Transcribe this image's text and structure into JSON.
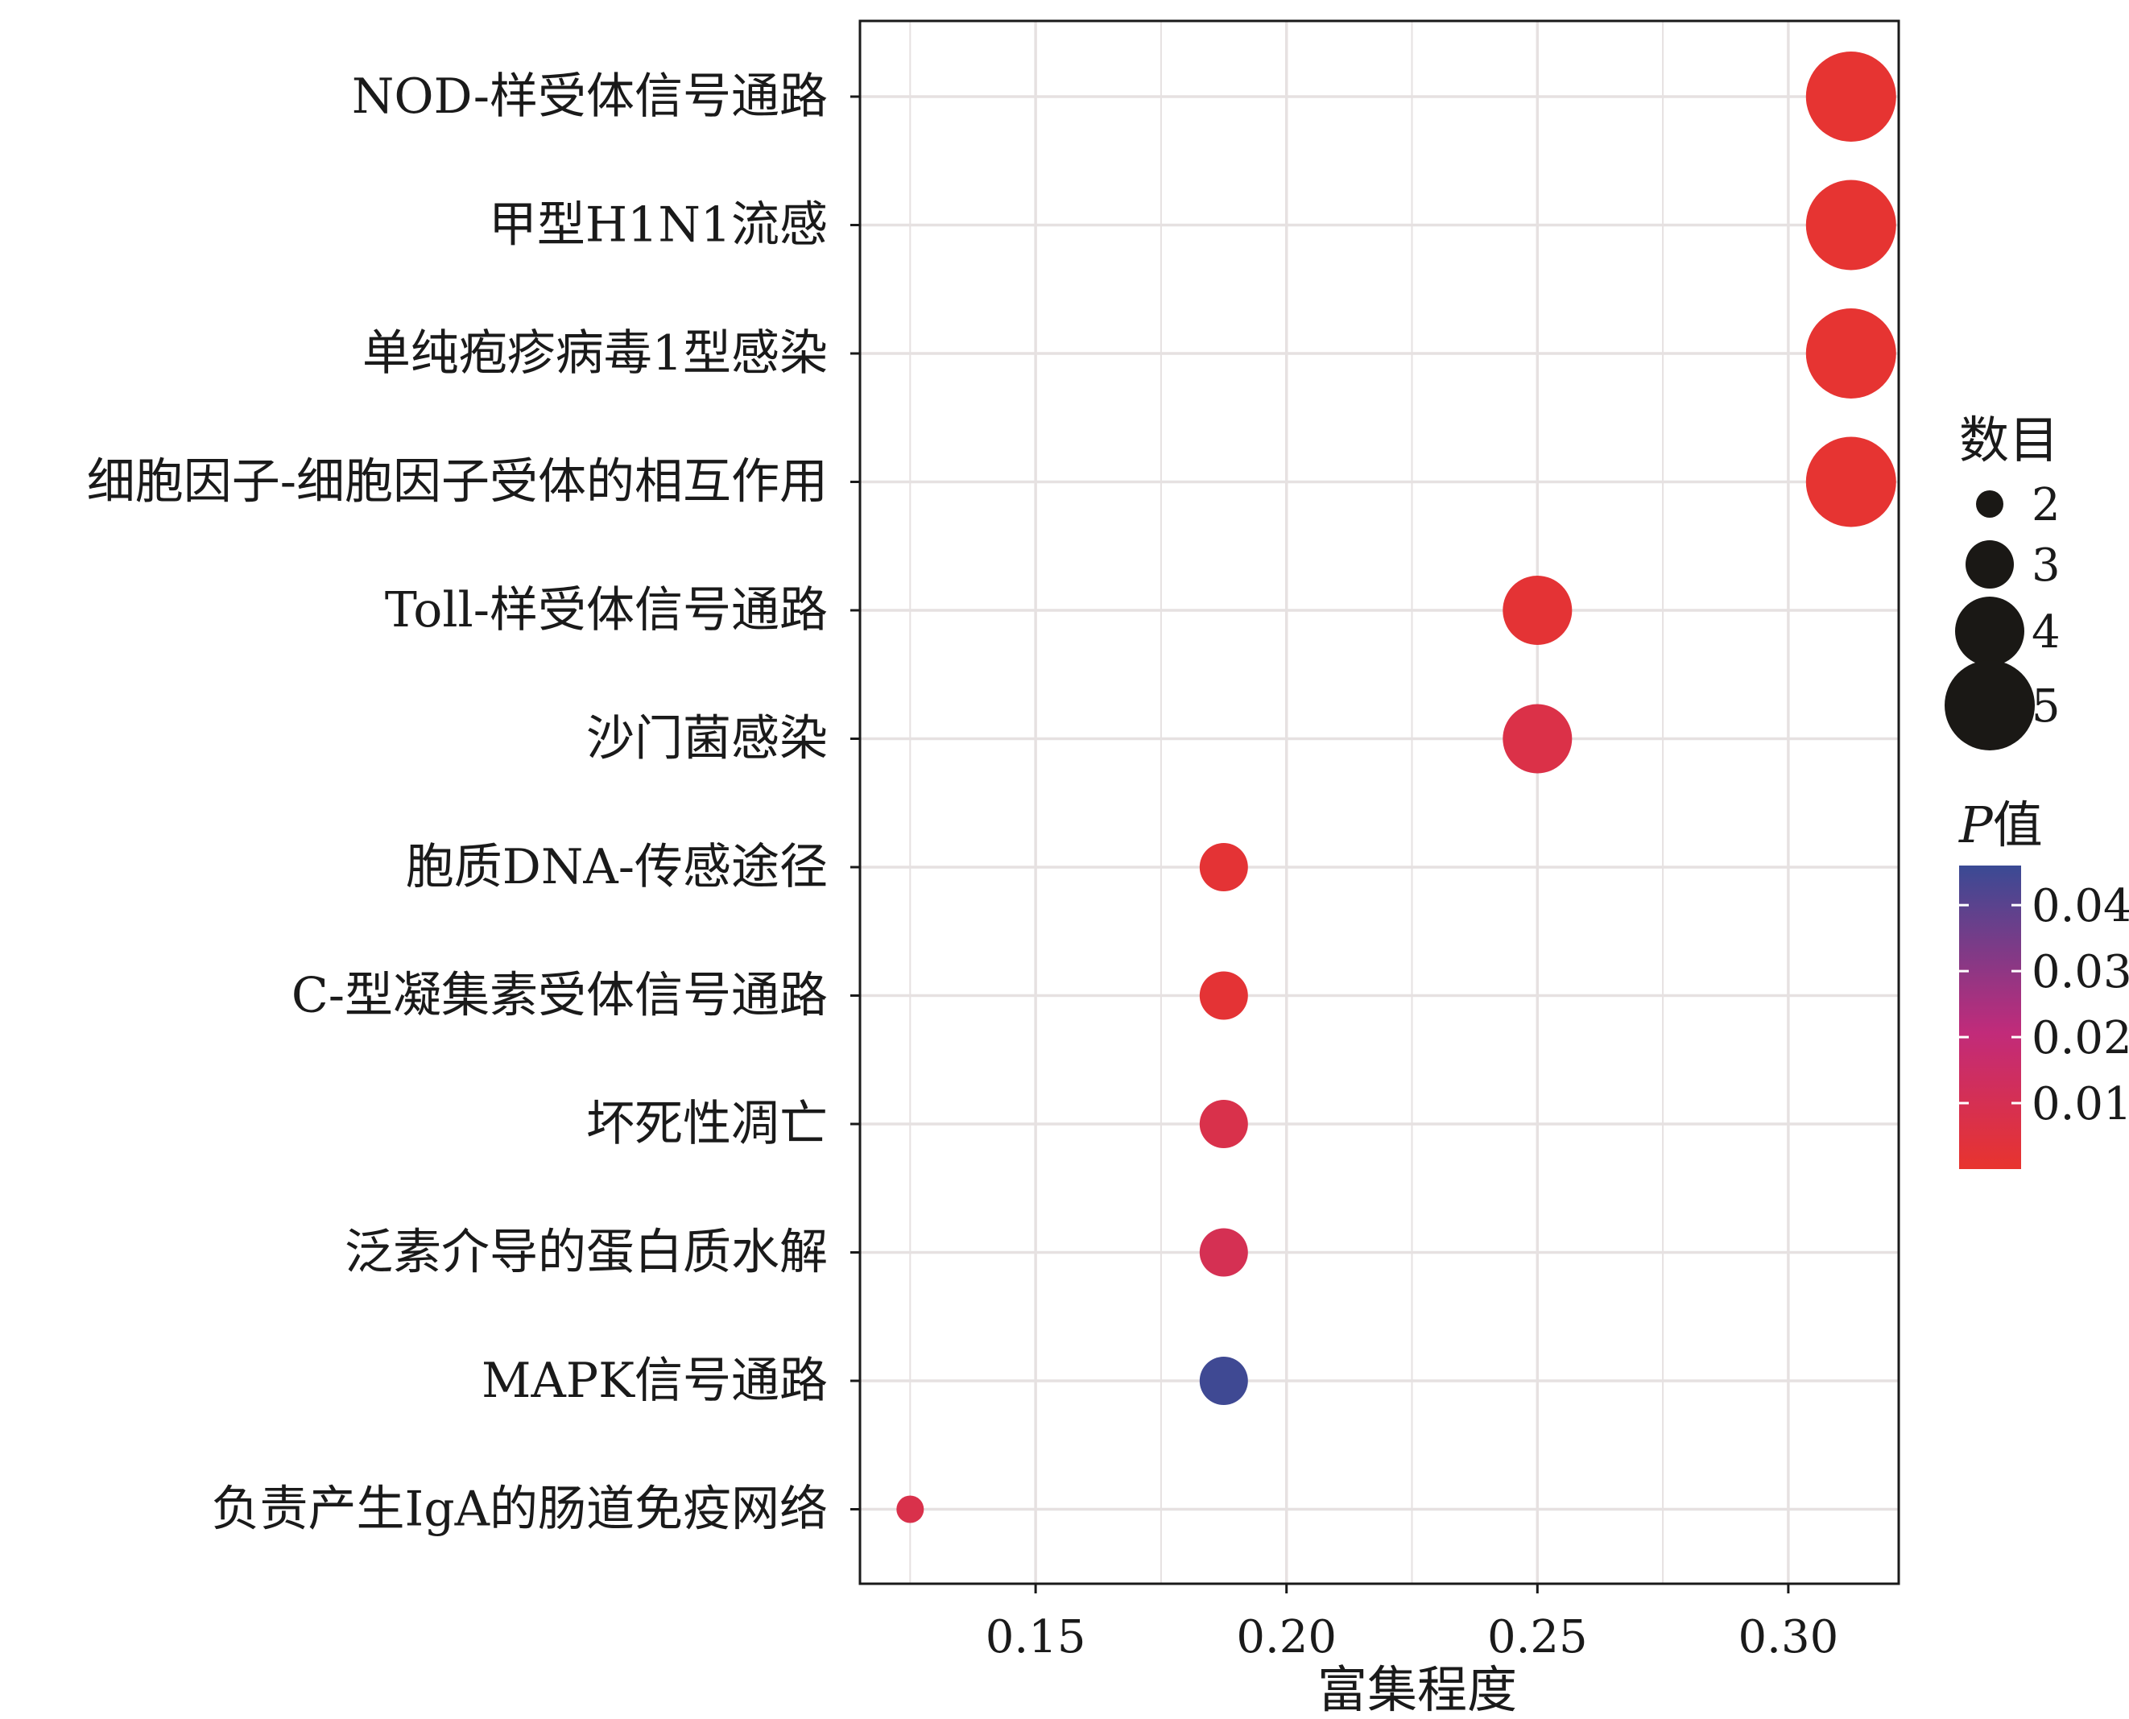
{
  "chart_data": {
    "type": "scatter",
    "xlabel": "富集程度",
    "ylabel": "",
    "xlim": [
      0.115,
      0.322
    ],
    "xticks": [
      0.15,
      0.2,
      0.25,
      0.3
    ],
    "xtick_labels": [
      "0.15",
      "0.20",
      "0.25",
      "0.30"
    ],
    "grid": true,
    "categories": [
      "NOD-样受体信号通路",
      "甲型H1N1流感",
      "单纯疱疹病毒1型感染",
      "细胞因子-细胞因子受体的相互作用",
      "Toll-样受体信号通路",
      "沙门菌感染",
      "胞质DNA-传感途径",
      "C-型凝集素受体信号通路",
      "坏死性凋亡",
      "泛素介导的蛋白质水解",
      "MAPK信号通路",
      "负责产生IgA的肠道免疫网络"
    ],
    "points": [
      {
        "category": "NOD-样受体信号通路",
        "x": 0.3125,
        "count": 5,
        "p": 0.001
      },
      {
        "category": "甲型H1N1流感",
        "x": 0.3125,
        "count": 5,
        "p": 0.001
      },
      {
        "category": "单纯疱疹病毒1型感染",
        "x": 0.3125,
        "count": 5,
        "p": 0.001
      },
      {
        "category": "细胞因子-细胞因子受体的相互作用",
        "x": 0.3125,
        "count": 5,
        "p": 0.001
      },
      {
        "category": "Toll-样受体信号通路",
        "x": 0.25,
        "count": 4,
        "p": 0.002
      },
      {
        "category": "沙门菌感染",
        "x": 0.25,
        "count": 4,
        "p": 0.007
      },
      {
        "category": "胞质DNA-传感途径",
        "x": 0.1875,
        "count": 3,
        "p": 0.002
      },
      {
        "category": "C-型凝集素受体信号通路",
        "x": 0.1875,
        "count": 3,
        "p": 0.002
      },
      {
        "category": "坏死性凋亡",
        "x": 0.1875,
        "count": 3,
        "p": 0.008
      },
      {
        "category": "泛素介导的蛋白质水解",
        "x": 0.1875,
        "count": 3,
        "p": 0.01
      },
      {
        "category": "MAPK信号通路",
        "x": 0.1875,
        "count": 3,
        "p": 0.045
      },
      {
        "category": "负责产生IgA的肠道免疫网络",
        "x": 0.125,
        "count": 2,
        "p": 0.008
      }
    ],
    "size_legend": {
      "title": "数目",
      "values": [
        2,
        3,
        4,
        5
      ],
      "labels": [
        "2",
        "3",
        "4",
        "5"
      ]
    },
    "color_legend": {
      "title_italic": "P",
      "title_rest": "值",
      "ticks": [
        0.04,
        0.03,
        0.02,
        0.01
      ],
      "tick_labels": [
        "0.04",
        "0.03",
        "0.02",
        "0.01"
      ],
      "range": [
        0.0,
        0.046
      ],
      "color_low": "#e8342e",
      "color_mid": "#c12b7a",
      "color_high": "#3a4a94"
    },
    "colors": {
      "grid": "#e6e1e1",
      "axis": "#1a1a1a",
      "legend_dot": "#1a1815"
    }
  }
}
